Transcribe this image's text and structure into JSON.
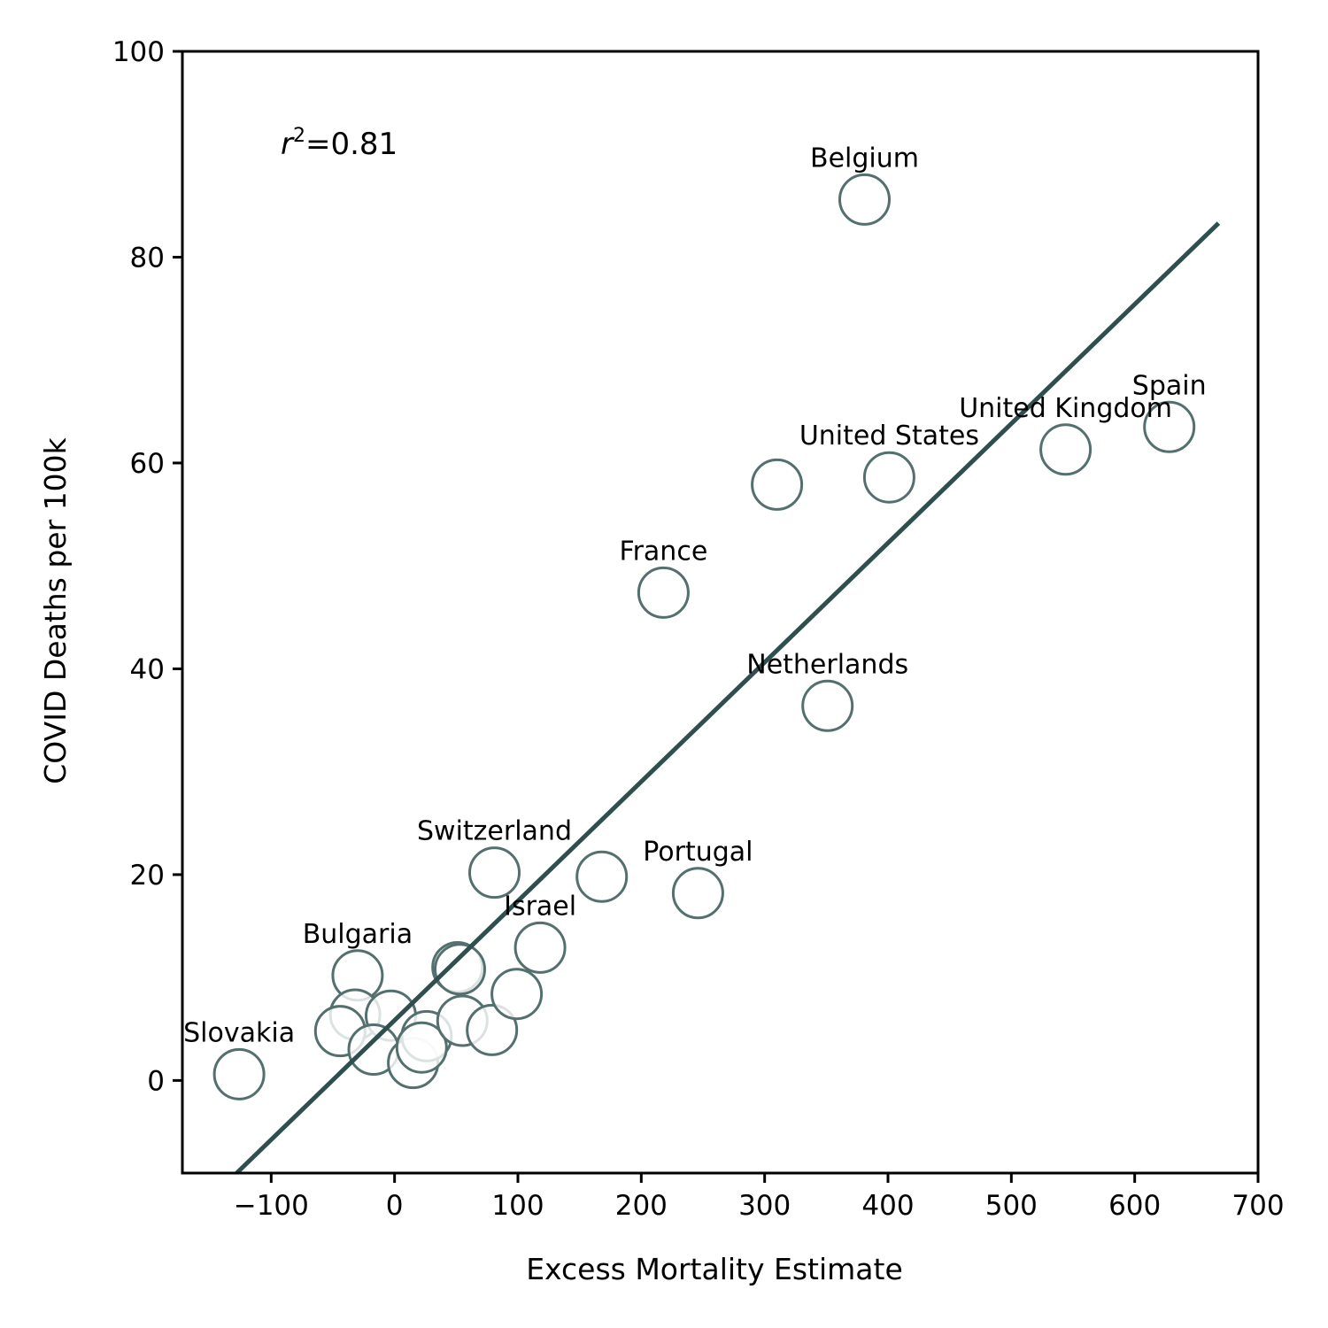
{
  "chart_data": {
    "type": "scatter",
    "xlabel": "Excess Mortality Estimate",
    "ylabel": "COVID Deaths per 100k",
    "xlim": [
      -172,
      700
    ],
    "ylim": [
      -9,
      100
    ],
    "xticks": [
      -100,
      0,
      100,
      200,
      300,
      400,
      500,
      600,
      700
    ],
    "yticks": [
      0,
      20,
      40,
      60,
      80,
      100
    ],
    "xtick_labels": [
      "−100",
      "0",
      "100",
      "200",
      "300",
      "400",
      "500",
      "600",
      "700"
    ],
    "ytick_labels": [
      "0",
      "20",
      "40",
      "60",
      "80",
      "100"
    ],
    "grid": false,
    "annotation": {
      "r": "r",
      "sup": "2",
      "rest": "=0.81"
    },
    "colors": {
      "marker_edge": "#53706f",
      "line": "#2f4f4f"
    },
    "regression_line": {
      "x": [
        -128,
        668
      ],
      "y": [
        -9,
        83.3
      ]
    },
    "points": [
      {
        "x": -126,
        "y": 0.6,
        "label": "Slovakia"
      },
      {
        "x": -30,
        "y": 10.2,
        "label": "Bulgaria"
      },
      {
        "x": -32,
        "y": 6.4,
        "label": ""
      },
      {
        "x": -44,
        "y": 4.8,
        "label": ""
      },
      {
        "x": -3,
        "y": 6.3,
        "label": ""
      },
      {
        "x": -17,
        "y": 3.0,
        "label": ""
      },
      {
        "x": 15,
        "y": 1.7,
        "label": ""
      },
      {
        "x": 26,
        "y": 4.3,
        "label": ""
      },
      {
        "x": 22,
        "y": 3.2,
        "label": ""
      },
      {
        "x": 51,
        "y": 11.0,
        "label": ""
      },
      {
        "x": 53,
        "y": 10.8,
        "label": ""
      },
      {
        "x": 55,
        "y": 5.8,
        "label": ""
      },
      {
        "x": 79,
        "y": 4.9,
        "label": ""
      },
      {
        "x": 99,
        "y": 8.4,
        "label": ""
      },
      {
        "x": 118,
        "y": 12.9,
        "label": "Israel"
      },
      {
        "x": 81,
        "y": 20.2,
        "label": "Switzerland"
      },
      {
        "x": 168,
        "y": 19.8,
        "label": ""
      },
      {
        "x": 246,
        "y": 18.2,
        "label": "Portugal"
      },
      {
        "x": 218,
        "y": 47.4,
        "label": "France"
      },
      {
        "x": 310,
        "y": 57.9,
        "label": ""
      },
      {
        "x": 351,
        "y": 36.4,
        "label": "Netherlands"
      },
      {
        "x": 381,
        "y": 85.6,
        "label": "Belgium"
      },
      {
        "x": 401,
        "y": 58.6,
        "label": "United States"
      },
      {
        "x": 544,
        "y": 61.3,
        "label": "United Kingdom"
      },
      {
        "x": 628,
        "y": 63.5,
        "label": "Spain"
      }
    ]
  }
}
